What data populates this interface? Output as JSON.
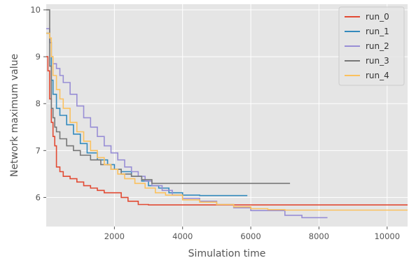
{
  "chart_data": {
    "type": "line",
    "title": "",
    "xlabel": "Simulation time",
    "ylabel": "Network maximum value",
    "xlim": [
      0,
      10600
    ],
    "ylim": [
      5.38,
      10.12
    ],
    "xticks": [
      2000,
      4000,
      6000,
      8000,
      10000
    ],
    "xtick_labels": [
      "2000",
      "4000",
      "6000",
      "8000",
      "10000"
    ],
    "yticks": [
      6,
      7,
      8,
      9,
      10
    ],
    "ytick_labels": [
      "6",
      "7",
      "8",
      "9",
      "10"
    ],
    "grid": true,
    "legend_position": "top-right",
    "colors": {
      "background": "#e5e5e5",
      "grid": "#ffffff",
      "run_0": "#e24a33",
      "run_1": "#348abd",
      "run_2": "#988ed5",
      "run_3": "#777777",
      "run_4": "#fbc15e"
    },
    "series": [
      {
        "name": "run_0",
        "x": [
          0,
          50,
          100,
          150,
          200,
          250,
          300,
          400,
          500,
          700,
          900,
          1100,
          1300,
          1500,
          1700,
          2000,
          2200,
          2400,
          2700,
          3000,
          3500,
          4500,
          5500,
          10600
        ],
        "y": [
          9.0,
          8.7,
          8.1,
          7.6,
          7.3,
          7.1,
          6.65,
          6.55,
          6.45,
          6.4,
          6.33,
          6.25,
          6.2,
          6.15,
          6.1,
          6.1,
          6.0,
          5.92,
          5.85,
          5.84,
          5.84,
          5.84,
          5.84,
          5.84
        ]
      },
      {
        "name": "run_1",
        "x": [
          0,
          100,
          150,
          200,
          300,
          400,
          600,
          800,
          1000,
          1200,
          1500,
          1800,
          2000,
          2200,
          2500,
          2800,
          3000,
          3300,
          3600,
          4000,
          4500,
          5000,
          5900
        ],
        "y": [
          9.5,
          9.3,
          8.5,
          8.2,
          7.9,
          7.75,
          7.55,
          7.35,
          7.15,
          6.95,
          6.8,
          6.7,
          6.6,
          6.55,
          6.45,
          6.35,
          6.25,
          6.2,
          6.1,
          6.05,
          6.04,
          6.04,
          6.04
        ]
      },
      {
        "name": "run_2",
        "x": [
          0,
          100,
          150,
          200,
          300,
          400,
          500,
          700,
          900,
          1100,
          1300,
          1500,
          1700,
          1900,
          2100,
          2300,
          2500,
          2700,
          2900,
          3100,
          3400,
          3700,
          4000,
          4500,
          5000,
          5500,
          6000,
          6500,
          7000,
          7500,
          8250
        ],
        "y": [
          9.6,
          9.3,
          9.0,
          8.85,
          8.75,
          8.6,
          8.45,
          8.2,
          7.95,
          7.7,
          7.5,
          7.3,
          7.1,
          6.95,
          6.8,
          6.65,
          6.55,
          6.45,
          6.35,
          6.25,
          6.15,
          6.05,
          5.98,
          5.92,
          5.85,
          5.78,
          5.72,
          5.72,
          5.62,
          5.57,
          5.57
        ]
      },
      {
        "name": "run_3",
        "x": [
          0,
          100,
          150,
          200,
          250,
          300,
          400,
          600,
          800,
          1000,
          1300,
          1600,
          1900,
          2200,
          2500,
          2800,
          3100,
          3500,
          4000,
          7150
        ],
        "y": [
          10.0,
          8.8,
          7.9,
          7.7,
          7.5,
          7.4,
          7.25,
          7.1,
          7.0,
          6.9,
          6.8,
          6.7,
          6.6,
          6.5,
          6.45,
          6.38,
          6.3,
          6.3,
          6.3,
          6.3
        ]
      },
      {
        "name": "run_4",
        "x": [
          0,
          100,
          150,
          200,
          300,
          400,
          500,
          700,
          900,
          1100,
          1300,
          1500,
          1700,
          1900,
          2100,
          2300,
          2600,
          2900,
          3200,
          3500,
          4000,
          4500,
          5000,
          5500,
          6000,
          6500,
          7000,
          8000,
          10600
        ],
        "y": [
          9.5,
          9.4,
          9.0,
          8.6,
          8.3,
          8.1,
          7.9,
          7.6,
          7.4,
          7.2,
          7.0,
          6.85,
          6.7,
          6.6,
          6.5,
          6.4,
          6.3,
          6.2,
          6.1,
          6.05,
          5.95,
          5.9,
          5.85,
          5.8,
          5.76,
          5.74,
          5.73,
          5.73,
          5.73
        ]
      }
    ]
  }
}
